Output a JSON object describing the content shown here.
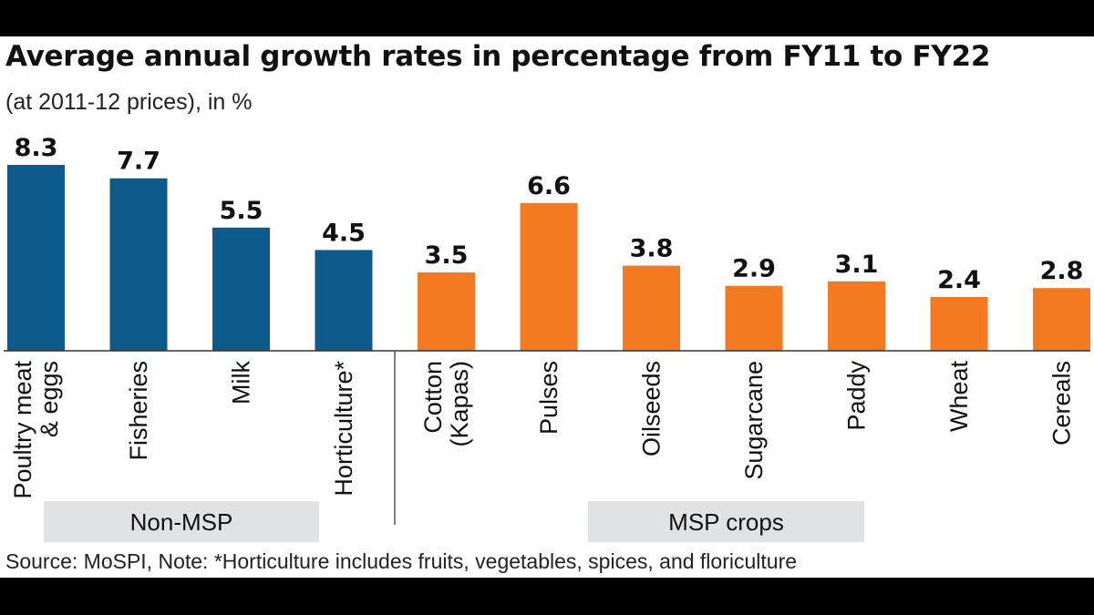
{
  "chart_data": {
    "type": "bar",
    "title": "Average annual growth rates in percentage from FY11 to FY22",
    "subtitle": "(at 2011-12 prices), in %",
    "categories": [
      [
        "Poultry meat",
        "& eggs"
      ],
      [
        "Fisheries"
      ],
      [
        "Milk"
      ],
      [
        "Horticulture*"
      ],
      [
        "Cotton",
        "(Kapas)"
      ],
      [
        "Pulses"
      ],
      [
        "Oilseeds"
      ],
      [
        "Sugarcane"
      ],
      [
        "Paddy"
      ],
      [
        "Wheat"
      ],
      [
        "Cereals"
      ]
    ],
    "values": [
      8.3,
      7.7,
      5.5,
      4.5,
      3.5,
      6.6,
      3.8,
      2.9,
      3.1,
      2.4,
      2.8
    ],
    "value_labels": [
      "8.3",
      "7.7",
      "5.5",
      "4.5",
      "3.5",
      "6.6",
      "3.8",
      "2.9",
      "3.1",
      "2.4",
      "2.8"
    ],
    "groups": [
      {
        "name": "Non-MSP",
        "range": [
          0,
          3
        ],
        "color": "#0e5a8a"
      },
      {
        "name": "MSP crops",
        "range": [
          4,
          10
        ],
        "color": "#f47920"
      }
    ],
    "ylim": [
      0,
      8.3
    ],
    "grid": false,
    "source": "Source: MoSPI, Note: *Horticulture includes fruits, vegetables, spices, and floriculture"
  }
}
